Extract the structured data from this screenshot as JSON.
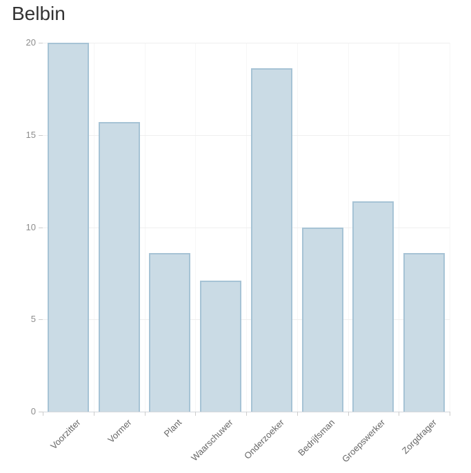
{
  "title": "Belbin",
  "colors": {
    "bar_fill": "#cadbe5",
    "bar_border": "#a6c3d5",
    "title_text": "#333333",
    "y_label": "#8c8c8c",
    "x_label": "#666666",
    "gridline_horizontal": "#efefef",
    "gridline_vertical": "#f6f6f6",
    "axis_line": "#d4d7dc",
    "tick": "#cccccc",
    "background": "#ffffff"
  },
  "chart_data": {
    "type": "bar",
    "title": "Belbin",
    "categories": [
      "Voorzitter",
      "Vormer",
      "Plant",
      "Waarschuwer",
      "Onderzoeker",
      "Bedrijfsman",
      "Groepswerker",
      "Zorgdrager"
    ],
    "values": [
      20,
      15.7,
      8.6,
      7.1,
      18.6,
      10,
      11.4,
      8.6
    ],
    "xlabel": "",
    "ylabel": "",
    "ylim": [
      0,
      20
    ],
    "yticks": [
      0,
      5,
      10,
      15,
      20
    ],
    "grid": true,
    "legend": "none",
    "x_label_rotation": -45,
    "title_position": "top-left"
  }
}
